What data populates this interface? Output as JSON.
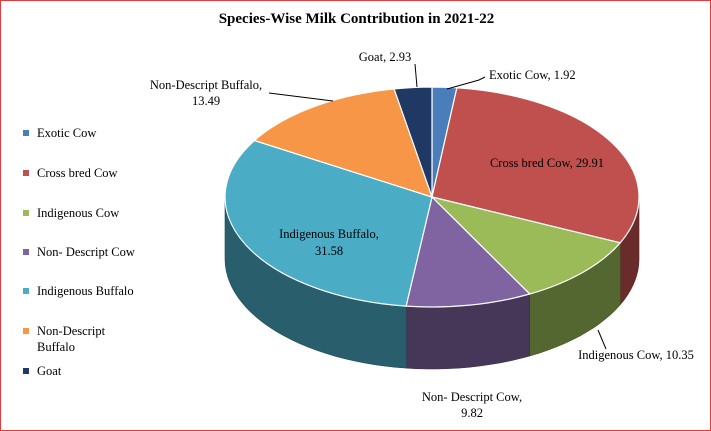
{
  "chart_data": {
    "type": "pie",
    "title": "Species-Wise Milk Contribution in 2021-22",
    "legend_position": "left",
    "slices": [
      {
        "name": "Exotic Cow",
        "value": 1.92,
        "color": "#4a7ebb",
        "label": "Exotic Cow, 1.92"
      },
      {
        "name": "Cross bred Cow",
        "value": 29.91,
        "color": "#c0504d",
        "label": "Cross bred Cow, 29.91"
      },
      {
        "name": "Indigenous Cow",
        "value": 10.35,
        "color": "#9bbb59",
        "label": "Indigenous Cow, 10.35"
      },
      {
        "name": "Non- Descript Cow",
        "value": 9.82,
        "color": "#8064a2",
        "label_lines": [
          "Non- Descript Cow,",
          "9.82"
        ]
      },
      {
        "name": "Indigenous Buffalo",
        "value": 31.58,
        "color": "#4bacc6",
        "label_lines": [
          "Indigenous Buffalo,",
          "31.58"
        ]
      },
      {
        "name": "Non-Descript Buffalo",
        "value": 13.49,
        "color": "#f79646",
        "label_lines": [
          "Non-Descript Buffalo,",
          "13.49"
        ]
      },
      {
        "name": "Goat",
        "value": 2.93,
        "color": "#1f3864",
        "label": "Goat, 2.93"
      }
    ],
    "legend": [
      {
        "label_lines": [
          "Exotic Cow"
        ],
        "color": "#4a7ebb"
      },
      {
        "label_lines": [
          "Cross bred Cow"
        ],
        "color": "#c0504d"
      },
      {
        "label_lines": [
          "Indigenous Cow"
        ],
        "color": "#9bbb59"
      },
      {
        "label_lines": [
          "Non- Descript Cow"
        ],
        "color": "#8064a2"
      },
      {
        "label_lines": [
          "Indigenous Buffalo"
        ],
        "color": "#4bacc6"
      },
      {
        "label_lines": [
          "Non-Descript",
          "Buffalo"
        ],
        "color": "#f79646"
      },
      {
        "label_lines": [
          "Goat"
        ],
        "color": "#1f3864"
      }
    ]
  }
}
